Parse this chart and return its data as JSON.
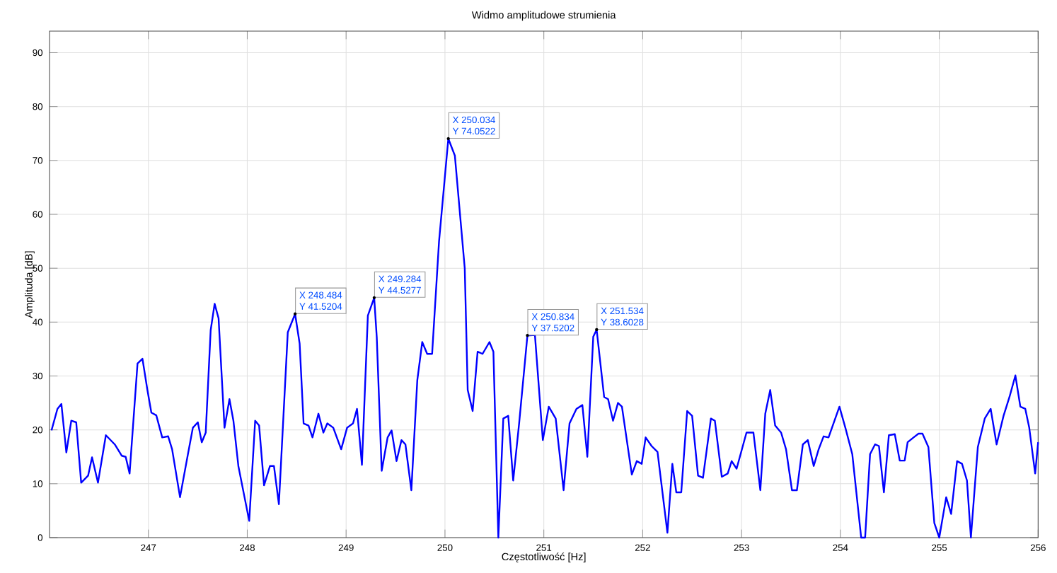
{
  "chart_data": {
    "type": "line",
    "title": "Widmo amplitudowe strumienia",
    "xlabel": "Częstotliwość [Hz]",
    "ylabel": "Amplituda [dB]",
    "x": [
      246.02,
      246.08,
      246.12,
      246.17,
      246.22,
      246.27,
      246.32,
      246.39,
      246.43,
      246.49,
      246.57,
      246.66,
      246.73,
      246.77,
      246.81,
      246.89,
      246.94,
      246.99,
      247.03,
      247.08,
      247.14,
      247.2,
      247.24,
      247.32,
      247.4,
      247.45,
      247.5,
      247.54,
      247.58,
      247.63,
      247.67,
      247.71,
      247.77,
      247.82,
      247.86,
      247.91,
      248.02,
      248.08,
      248.12,
      248.17,
      248.23,
      248.27,
      248.32,
      248.41,
      248.484,
      248.53,
      248.57,
      248.62,
      248.66,
      248.72,
      248.77,
      248.81,
      248.87,
      248.95,
      249.01,
      249.07,
      249.11,
      249.16,
      249.22,
      249.284,
      249.31,
      249.36,
      249.42,
      249.46,
      249.51,
      249.56,
      249.6,
      249.66,
      249.72,
      249.77,
      249.82,
      249.87,
      249.94,
      250.034,
      250.1,
      250.2,
      250.23,
      250.28,
      250.33,
      250.38,
      250.45,
      250.49,
      250.54,
      250.59,
      250.64,
      250.69,
      250.75,
      250.834,
      250.91,
      250.99,
      251.05,
      251.12,
      251.2,
      251.26,
      251.33,
      251.39,
      251.44,
      251.5,
      251.534,
      251.61,
      251.65,
      251.7,
      251.75,
      251.79,
      251.89,
      251.94,
      251.99,
      252.03,
      252.09,
      252.15,
      252.25,
      252.3,
      252.34,
      252.39,
      252.45,
      252.5,
      252.56,
      252.61,
      252.69,
      252.73,
      252.8,
      252.86,
      252.9,
      252.95,
      253.05,
      253.12,
      253.19,
      253.24,
      253.29,
      253.34,
      253.4,
      253.45,
      253.51,
      253.56,
      253.62,
      253.67,
      253.73,
      253.78,
      253.83,
      253.88,
      253.99,
      254.05,
      254.12,
      254.21,
      254.25,
      254.3,
      254.35,
      254.39,
      254.44,
      254.49,
      254.55,
      254.6,
      254.65,
      254.68,
      254.74,
      254.79,
      254.83,
      254.89,
      254.95,
      255.0,
      255.07,
      255.12,
      255.18,
      255.23,
      255.28,
      255.32,
      255.39,
      255.46,
      255.52,
      255.58,
      255.65,
      255.71,
      255.77,
      255.82,
      255.87,
      255.91,
      255.97,
      256.0
    ],
    "series": [
      {
        "color": "#0000ff",
        "values": [
          19.9,
          23.9,
          24.8,
          15.8,
          21.7,
          21.4,
          10.2,
          11.5,
          14.9,
          10.2,
          19.0,
          17.3,
          15.2,
          15.0,
          11.9,
          32.3,
          33.2,
          27.4,
          23.2,
          22.7,
          18.6,
          18.8,
          16.4,
          7.5,
          15.5,
          20.4,
          21.4,
          17.7,
          19.5,
          38.5,
          43.4,
          40.7,
          20.4,
          25.7,
          21.7,
          13.3,
          3.1,
          21.7,
          20.8,
          9.7,
          13.3,
          13.3,
          6.2,
          38.1,
          41.5204,
          36,
          21.2,
          20.8,
          18.6,
          23.0,
          19.5,
          21.2,
          20.4,
          16.4,
          20.4,
          21.2,
          23.9,
          13.5,
          41.2,
          44.5277,
          37.2,
          12.4,
          18.6,
          19.9,
          14.2,
          18.1,
          17.3,
          8.8,
          29.2,
          36.3,
          34.1,
          34.1,
          55,
          74.0522,
          70.9,
          50,
          27.4,
          23.5,
          34.5,
          34.1,
          36.3,
          34.5,
          0,
          22.1,
          22.6,
          10.6,
          21.2,
          37.5202,
          37.6,
          18.1,
          24.3,
          22.1,
          8.8,
          21.2,
          23.9,
          24.6,
          15.0,
          37.3,
          38.6028,
          26.1,
          25.7,
          21.7,
          25.0,
          24.3,
          11.7,
          14.2,
          13.7,
          18.6,
          17.0,
          15.9,
          0.9,
          13.7,
          8.4,
          8.4,
          23.5,
          22.6,
          11.5,
          11.1,
          22.1,
          21.7,
          11.3,
          11.9,
          14.2,
          12.8,
          19.5,
          19.5,
          8.8,
          23.0,
          27.4,
          20.8,
          19.5,
          16.4,
          8.8,
          8.8,
          17.3,
          18.1,
          13.3,
          16.4,
          18.8,
          18.6,
          24.3,
          20.4,
          15.5,
          0,
          0,
          15.5,
          17.3,
          17.0,
          8.4,
          19.0,
          19.2,
          14.3,
          14.3,
          17.7,
          18.6,
          19.3,
          19.3,
          16.8,
          2.7,
          0,
          7.5,
          4.4,
          14.2,
          13.7,
          10.6,
          0,
          16.8,
          22.1,
          23.9,
          17.3,
          22.6,
          26.1,
          30.1,
          24.3,
          23.9,
          20.4,
          11.9,
          17.7
        ]
      }
    ],
    "xlim": [
      246,
      256
    ],
    "ylim": [
      0,
      94
    ],
    "xticks": [
      247,
      248,
      249,
      250,
      251,
      252,
      253,
      254,
      255,
      256
    ],
    "yticks": [
      0,
      10,
      20,
      30,
      40,
      50,
      60,
      70,
      80,
      90
    ],
    "grid": true,
    "marker": "none",
    "line_style": "solid",
    "annotations": [
      {
        "text": "X 248.484",
        "x": 248.484,
        "y": 41.5204
      },
      "Y 41.5204",
      {
        "text": "X 249.284",
        "x": 249.284,
        "y": 44.5277
      },
      "Y 44.5277",
      {
        "text": "X 250.034",
        "x": 250.034,
        "y": 74.0522
      },
      "Y 74.0522",
      {
        "text": "X 250.834",
        "x": 250.834,
        "y": 37.5202
      },
      "Y 37.5202",
      {
        "text": "X 251.534",
        "x": 251.534,
        "y": 38.6028
      },
      "Y 38.6028"
    ]
  }
}
